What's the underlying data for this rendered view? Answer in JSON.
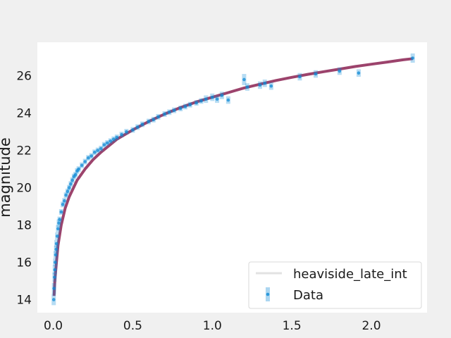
{
  "chart_data": {
    "type": "scatter",
    "title": "",
    "xlabel": "",
    "ylabel": "magnitude",
    "xlim": [
      -0.1,
      2.35
    ],
    "ylim": [
      13.3,
      27.8
    ],
    "xticks": [
      "0.0",
      "0.5",
      "1.0",
      "1.5",
      "2.0"
    ],
    "xtick_values": [
      0.0,
      0.5,
      1.0,
      1.5,
      2.0
    ],
    "yticks": [
      "14",
      "16",
      "18",
      "20",
      "22",
      "24",
      "26"
    ],
    "ytick_values": [
      14,
      16,
      18,
      20,
      22,
      24,
      26
    ],
    "grid": false,
    "legend_position": "lower right",
    "series": [
      {
        "name": "heaviside_late_int",
        "kind": "line",
        "color": "#8b2252",
        "x": [
          0.005,
          0.01,
          0.02,
          0.03,
          0.05,
          0.075,
          0.1,
          0.15,
          0.2,
          0.25,
          0.3,
          0.4,
          0.5,
          0.6,
          0.7,
          0.8,
          0.9,
          1.0,
          1.1,
          1.2,
          1.3,
          1.4,
          1.5,
          1.6,
          1.7,
          1.8,
          1.9,
          2.0,
          2.1,
          2.2,
          2.26
        ],
        "y": [
          14.2,
          15.0,
          16.0,
          16.9,
          18.0,
          18.9,
          19.5,
          20.4,
          21.0,
          21.5,
          21.9,
          22.6,
          23.1,
          23.55,
          23.95,
          24.3,
          24.6,
          24.85,
          25.1,
          25.35,
          25.55,
          25.75,
          25.92,
          26.08,
          26.22,
          26.36,
          26.5,
          26.62,
          26.74,
          26.86,
          26.92
        ]
      },
      {
        "name": "Data",
        "kind": "errorbar",
        "color": "#0e8ad6",
        "x": [
          0.003,
          0.005,
          0.008,
          0.01,
          0.012,
          0.015,
          0.018,
          0.02,
          0.025,
          0.03,
          0.035,
          0.04,
          0.05,
          0.06,
          0.07,
          0.08,
          0.09,
          0.1,
          0.11,
          0.12,
          0.13,
          0.14,
          0.15,
          0.16,
          0.18,
          0.2,
          0.22,
          0.24,
          0.26,
          0.28,
          0.3,
          0.32,
          0.34,
          0.36,
          0.38,
          0.4,
          0.43,
          0.46,
          0.5,
          0.53,
          0.56,
          0.6,
          0.63,
          0.66,
          0.7,
          0.73,
          0.76,
          0.8,
          0.83,
          0.86,
          0.9,
          0.93,
          0.96,
          1.0,
          1.03,
          1.06,
          1.1,
          1.2,
          1.22,
          1.3,
          1.33,
          1.37,
          1.55,
          1.65,
          1.8,
          1.92,
          2.26
        ],
        "y": [
          14.0,
          14.6,
          15.2,
          15.6,
          16.0,
          16.4,
          16.7,
          17.0,
          17.4,
          17.8,
          18.1,
          18.3,
          18.7,
          19.1,
          19.3,
          19.6,
          19.8,
          20.0,
          20.2,
          20.4,
          20.6,
          20.7,
          20.9,
          21.0,
          21.2,
          21.4,
          21.6,
          21.7,
          21.9,
          22.0,
          22.1,
          22.3,
          22.4,
          22.5,
          22.6,
          22.7,
          22.85,
          23.0,
          23.1,
          23.25,
          23.4,
          23.55,
          23.65,
          23.8,
          23.95,
          24.05,
          24.15,
          24.25,
          24.35,
          24.45,
          24.55,
          24.65,
          24.75,
          24.85,
          24.75,
          24.95,
          24.7,
          25.8,
          25.4,
          25.5,
          25.6,
          25.45,
          25.95,
          26.1,
          26.25,
          26.15,
          26.95
        ],
        "yerr": [
          0.3,
          0.3,
          0.25,
          0.25,
          0.2,
          0.2,
          0.2,
          0.2,
          0.2,
          0.2,
          0.2,
          0.15,
          0.15,
          0.15,
          0.15,
          0.15,
          0.15,
          0.15,
          0.15,
          0.15,
          0.15,
          0.15,
          0.15,
          0.15,
          0.15,
          0.15,
          0.15,
          0.15,
          0.15,
          0.15,
          0.15,
          0.15,
          0.15,
          0.15,
          0.15,
          0.15,
          0.15,
          0.15,
          0.15,
          0.15,
          0.15,
          0.15,
          0.15,
          0.15,
          0.15,
          0.15,
          0.15,
          0.15,
          0.15,
          0.15,
          0.15,
          0.15,
          0.2,
          0.2,
          0.2,
          0.2,
          0.2,
          0.3,
          0.2,
          0.2,
          0.2,
          0.2,
          0.2,
          0.2,
          0.2,
          0.2,
          0.25
        ]
      }
    ]
  }
}
